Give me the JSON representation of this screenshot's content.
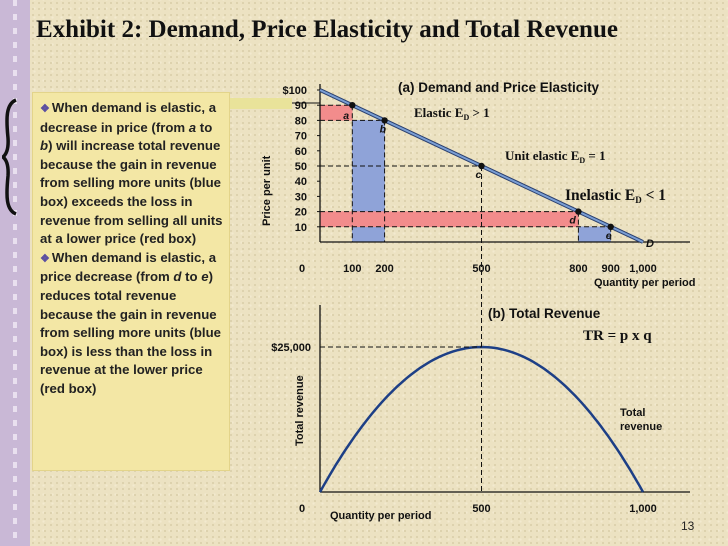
{
  "title": "Exhibit 2: Demand, Price Elasticity and Total Revenue",
  "note": {
    "para1": {
      "text": "When demand is elastic, a decrease in price (from ",
      "from_label": "a",
      "mid": " to ",
      "to_label": "b",
      "rest": ") will increase total revenue because the gain in revenue from selling more units (blue box) exceeds the loss in revenue from selling all units at a lower price (red box)"
    },
    "para2": {
      "text": "When demand is elastic, a price decrease (from ",
      "from_label": "d",
      "mid": " to ",
      "to_label": "e",
      "rest": ") reduces total revenue because the gain in revenue from selling more units (blue box) is less than the loss in revenue at the lower price (red box)"
    }
  },
  "panel_a": {
    "title": "(a) Demand and Price Elasticity",
    "ylabel": "Price per unit",
    "xlabel": "Quantity per period",
    "y_ticks": [
      "$100",
      "90",
      "80",
      "70",
      "60",
      "50",
      "40",
      "30",
      "20",
      "10"
    ],
    "x_ticks": [
      "0",
      "100",
      "200",
      "500",
      "800",
      "900",
      "1,000"
    ],
    "elastic_label": "Elastic E",
    "elastic_cond": " > 1",
    "unit_label": "Unit elastic E",
    "unit_cond": " = 1",
    "inelastic_label": "Inelastic  E",
    "inelastic_cond": " < 1",
    "subscript": "D",
    "points": [
      "a",
      "b",
      "c",
      "d",
      "e"
    ],
    "curve_label": "D"
  },
  "panel_b": {
    "title": "(b) Total Revenue",
    "formula": "TR = p x q",
    "ylabel": "Total revenue",
    "xlabel": "Quantity per period",
    "y_tick": "$25,000",
    "x_ticks": [
      "0",
      "500",
      "1,000"
    ],
    "curve_label_1": "Total",
    "curve_label_2": "revenue"
  },
  "page_number": "13",
  "colors": {
    "demand_line": "#7a9ed4",
    "blue_box": "#8fa3d8",
    "red_box": "#f28c8c",
    "note_bg": "#f3e7a5"
  },
  "chart_data": [
    {
      "type": "line",
      "title": "(a) Demand and Price Elasticity",
      "xlabel": "Quantity per period",
      "ylabel": "Price per unit",
      "x": [
        0,
        100,
        200,
        500,
        800,
        900,
        1000
      ],
      "series": [
        {
          "name": "D",
          "values": [
            100,
            90,
            80,
            50,
            20,
            10,
            0
          ]
        }
      ],
      "points": [
        {
          "label": "a",
          "x": 100,
          "y": 90
        },
        {
          "label": "b",
          "x": 200,
          "y": 80
        },
        {
          "label": "c",
          "x": 500,
          "y": 50
        },
        {
          "label": "d",
          "x": 800,
          "y": 20
        },
        {
          "label": "e",
          "x": 900,
          "y": 10
        }
      ],
      "xlim": [
        0,
        1000
      ],
      "ylim": [
        0,
        100
      ]
    },
    {
      "type": "line",
      "title": "(b) Total Revenue",
      "xlabel": "Quantity per period",
      "ylabel": "Total revenue",
      "x": [
        0,
        100,
        200,
        300,
        400,
        500,
        600,
        700,
        800,
        900,
        1000
      ],
      "series": [
        {
          "name": "Total revenue",
          "values": [
            0,
            9000,
            16000,
            21000,
            24000,
            25000,
            24000,
            21000,
            16000,
            9000,
            0
          ]
        }
      ],
      "xlim": [
        0,
        1000
      ],
      "ylim": [
        0,
        25000
      ]
    }
  ]
}
